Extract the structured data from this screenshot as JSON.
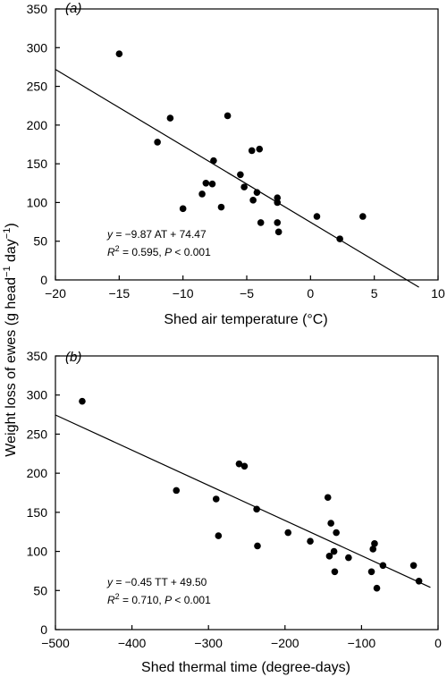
{
  "ylabel_shared": {
    "prefix": "Weight loss of ewes (g head",
    "sup1": "−1",
    "mid": " day",
    "sup2": "−1",
    "suffix": ")"
  },
  "chart_data": [
    {
      "type": "scatter",
      "panel_label": "(a)",
      "xlabel": "Shed air temperature (°C)",
      "xlim": [
        -20,
        10
      ],
      "ylim": [
        0,
        350
      ],
      "xticks": [
        -20,
        -15,
        -10,
        -5,
        0,
        5,
        10
      ],
      "yticks": [
        0,
        50,
        100,
        150,
        200,
        250,
        300,
        350
      ],
      "grid": false,
      "points": [
        [
          -15,
          292
        ],
        [
          -12,
          178
        ],
        [
          -11,
          209
        ],
        [
          -10,
          92
        ],
        [
          -8.5,
          111
        ],
        [
          -8.2,
          125
        ],
        [
          -7.7,
          124
        ],
        [
          -7.6,
          154
        ],
        [
          -7,
          94
        ],
        [
          -6.5,
          212
        ],
        [
          -5.5,
          136
        ],
        [
          -5.2,
          120
        ],
        [
          -4.6,
          167
        ],
        [
          -4.5,
          103
        ],
        [
          -4.2,
          113
        ],
        [
          -4,
          169
        ],
        [
          -3.9,
          74
        ],
        [
          -2.6,
          106
        ],
        [
          -2.6,
          100
        ],
        [
          -2.6,
          74
        ],
        [
          -2.5,
          62
        ],
        [
          0.5,
          82
        ],
        [
          2.3,
          53
        ],
        [
          4.1,
          82
        ]
      ],
      "regression": {
        "slope": -9.87,
        "intercept": 74.47,
        "x_range": [
          -20,
          8.5
        ]
      },
      "annotation": {
        "line1_var": "y",
        "line1_rest": " = −9.87 AT + 74.47",
        "line2_r": "R",
        "line2_sup": "2",
        "line2_mid": " = 0.595, ",
        "line2_p": "P",
        "line2_end": " < 0.001"
      }
    },
    {
      "type": "scatter",
      "panel_label": "(b)",
      "xlabel": "Shed thermal time (degree-days)",
      "xlim": [
        -500,
        0
      ],
      "ylim": [
        0,
        350
      ],
      "xticks": [
        -500,
        -400,
        -300,
        -200,
        -100,
        0
      ],
      "yticks": [
        0,
        50,
        100,
        150,
        200,
        250,
        300,
        350
      ],
      "grid": false,
      "points": [
        [
          -465,
          292
        ],
        [
          -342,
          178
        ],
        [
          -290,
          167
        ],
        [
          -287,
          120
        ],
        [
          -260,
          212
        ],
        [
          -253,
          209
        ],
        [
          -237,
          154
        ],
        [
          -236,
          107
        ],
        [
          -196,
          124
        ],
        [
          -167,
          113
        ],
        [
          -144,
          169
        ],
        [
          -142,
          94
        ],
        [
          -140,
          136
        ],
        [
          -136,
          100
        ],
        [
          -135,
          74
        ],
        [
          -133,
          124
        ],
        [
          -117,
          92
        ],
        [
          -87,
          74
        ],
        [
          -85,
          103
        ],
        [
          -83,
          110
        ],
        [
          -80,
          53
        ],
        [
          -72,
          82
        ],
        [
          -32,
          82
        ],
        [
          -25,
          62
        ]
      ],
      "regression": {
        "slope": -0.45,
        "intercept": 49.5,
        "x_range": [
          -500,
          -10
        ]
      },
      "annotation": {
        "line1_var": "y",
        "line1_rest": " = −0.45 TT + 49.50",
        "line2_r": "R",
        "line2_sup": "2",
        "line2_mid": " = 0.710, ",
        "line2_p": "P",
        "line2_end": " < 0.001"
      }
    }
  ]
}
